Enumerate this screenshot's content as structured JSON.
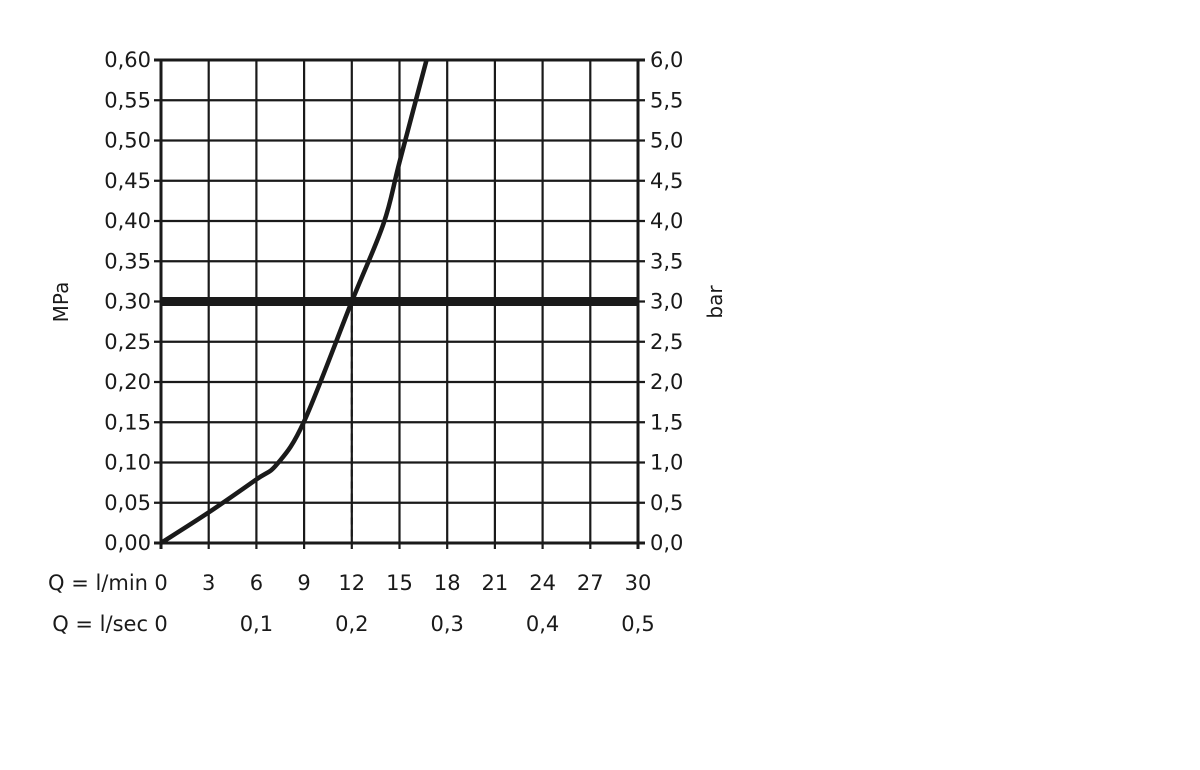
{
  "chart_data": {
    "type": "line",
    "title": "",
    "ylabel": "MPa",
    "y2label": "bar",
    "xlabel_rows": [
      "Q = l/min",
      "Q = l/sec"
    ],
    "xlim": [
      0,
      30
    ],
    "ylim": [
      0,
      0.6
    ],
    "y2lim": [
      0,
      6
    ],
    "grid": true,
    "x_ticks": [
      "0",
      "3",
      "6",
      "9",
      "12",
      "15",
      "18",
      "21",
      "24",
      "27",
      "30"
    ],
    "x_tick_values": [
      0,
      3,
      6,
      9,
      12,
      15,
      18,
      21,
      24,
      27,
      30
    ],
    "x2_ticks": [
      "0",
      "0,1",
      "0,2",
      "0,3",
      "0,4",
      "0,5"
    ],
    "x2_tick_values": [
      0,
      6,
      12,
      18,
      24,
      30
    ],
    "y_ticks": [
      "0,00",
      "0,05",
      "0,10",
      "0,15",
      "0,20",
      "0,25",
      "0,30",
      "0,35",
      "0,40",
      "0,45",
      "0,50",
      "0,55",
      "0,60"
    ],
    "y2_ticks": [
      "0,0",
      "0,5",
      "1,0",
      "1,5",
      "2,0",
      "2,5",
      "3,0",
      "3,5",
      "4,0",
      "4,5",
      "5,0",
      "5,5",
      "6,0"
    ],
    "series": [
      {
        "x": [
          0,
          3,
          6,
          7.3,
          9,
          12,
          14,
          15,
          16.7
        ],
        "y": [
          0,
          0.038,
          0.079,
          0.098,
          0.151,
          0.3,
          0.397,
          0.473,
          0.6
        ]
      }
    ],
    "reference_line": {
      "y": 0.3
    },
    "marker_line": {
      "x": 12,
      "y": 0.3
    },
    "color": "#1a1a1a"
  }
}
